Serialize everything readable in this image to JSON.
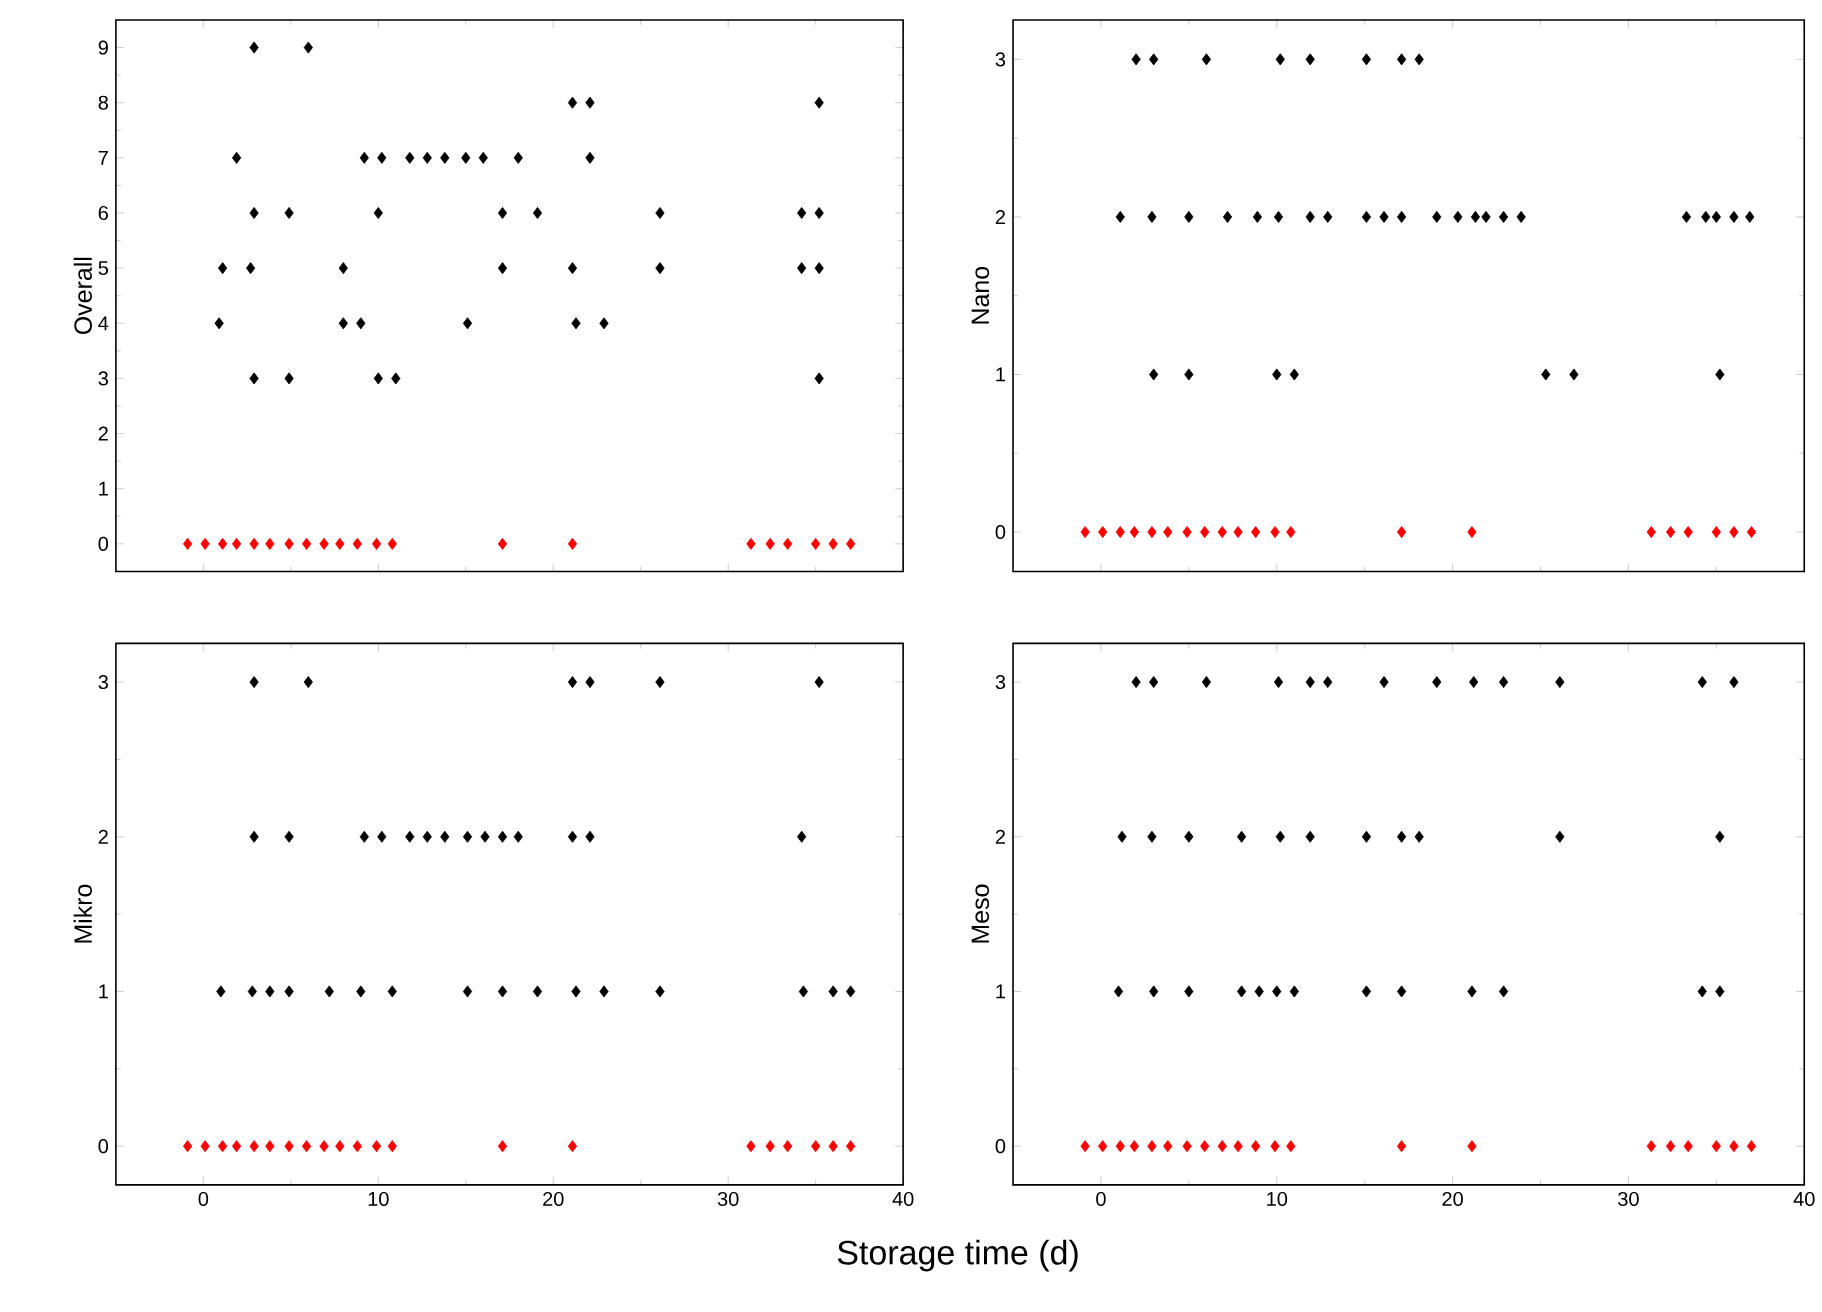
{
  "chart_data": [
    {
      "type": "scatter",
      "ylabel": "Overall",
      "xlim": [
        -5,
        40
      ],
      "ylim": [
        -0.5,
        9.5
      ],
      "xticks": [
        0,
        10,
        20,
        30,
        40
      ],
      "yticks": [
        0,
        1,
        2,
        3,
        4,
        5,
        6,
        7,
        8,
        9
      ],
      "tick_labels": "y",
      "marker": "diamond",
      "series": [
        {
          "color": "#000000",
          "x": [
            2.9,
            6.0,
            21.1,
            22.1,
            35.2,
            1.9,
            9.2,
            10.2,
            11.8,
            12.8,
            13.8,
            15.0,
            16.0,
            18.0,
            22.1,
            2.9,
            4.9,
            10.0,
            17.1,
            19.1,
            26.1,
            34.2,
            35.2,
            1.1,
            2.7,
            8.0,
            17.1,
            21.1,
            26.1,
            34.2,
            35.2,
            0.9,
            8.0,
            9.0,
            15.1,
            21.3,
            22.9,
            2.9,
            4.9,
            10.0,
            11.0,
            35.2
          ],
          "values": [
            9,
            9,
            8,
            8,
            8,
            7,
            7,
            7,
            7,
            7,
            7,
            7,
            7,
            7,
            7,
            6,
            6,
            6,
            6,
            6,
            6,
            6,
            6,
            5,
            5,
            5,
            5,
            5,
            5,
            5,
            5,
            4,
            4,
            4,
            4,
            4,
            4,
            3,
            3,
            3,
            3,
            3
          ]
        },
        {
          "color": "#ff0000",
          "x": [
            -0.9,
            0.1,
            1.1,
            1.9,
            2.9,
            3.8,
            4.9,
            5.9,
            6.9,
            7.8,
            8.8,
            9.9,
            10.8,
            17.1,
            21.1,
            31.3,
            32.4,
            33.4,
            35.0,
            36.0,
            37.0
          ],
          "values": [
            0,
            0,
            0,
            0,
            0,
            0,
            0,
            0,
            0,
            0,
            0,
            0,
            0,
            0,
            0,
            0,
            0,
            0,
            0,
            0,
            0
          ]
        }
      ]
    },
    {
      "type": "scatter",
      "ylabel": "Nano",
      "xlim": [
        -5,
        40
      ],
      "ylim": [
        -0.25,
        3.25
      ],
      "xticks": [
        0,
        10,
        20,
        30,
        40
      ],
      "yticks": [
        0,
        1,
        2,
        3
      ],
      "tick_labels": "y",
      "marker": "diamond",
      "series": [
        {
          "color": "#000000",
          "x": [
            2.0,
            3.0,
            6.0,
            10.2,
            11.9,
            15.1,
            17.1,
            18.1,
            1.1,
            2.9,
            5.0,
            7.2,
            8.9,
            10.1,
            11.9,
            12.9,
            15.1,
            16.1,
            17.1,
            19.1,
            20.3,
            21.3,
            21.9,
            22.9,
            23.9,
            33.3,
            34.4,
            35.0,
            36.0,
            36.9,
            3.0,
            5.0,
            10.0,
            11.0,
            25.3,
            26.9,
            35.2
          ],
          "values": [
            3,
            3,
            3,
            3,
            3,
            3,
            3,
            3,
            2,
            2,
            2,
            2,
            2,
            2,
            2,
            2,
            2,
            2,
            2,
            2,
            2,
            2,
            2,
            2,
            2,
            2,
            2,
            2,
            2,
            2,
            1,
            1,
            1,
            1,
            1,
            1,
            1
          ]
        },
        {
          "color": "#ff0000",
          "x": [
            -0.9,
            0.1,
            1.1,
            1.9,
            2.9,
            3.8,
            4.9,
            5.9,
            6.9,
            7.8,
            8.8,
            9.9,
            10.8,
            17.1,
            21.1,
            31.3,
            32.4,
            33.4,
            35.0,
            36.0,
            37.0
          ],
          "values": [
            0,
            0,
            0,
            0,
            0,
            0,
            0,
            0,
            0,
            0,
            0,
            0,
            0,
            0,
            0,
            0,
            0,
            0,
            0,
            0,
            0
          ]
        }
      ]
    },
    {
      "type": "scatter",
      "xlabel": "Storage time (d)",
      "ylabel": "Mikro",
      "xlim": [
        -5,
        40
      ],
      "ylim": [
        -0.25,
        3.25
      ],
      "xticks": [
        0,
        10,
        20,
        30,
        40
      ],
      "yticks": [
        0,
        1,
        2,
        3
      ],
      "marker": "diamond",
      "series": [
        {
          "color": "#000000",
          "x": [
            2.9,
            6.0,
            21.1,
            22.1,
            26.1,
            35.2,
            2.9,
            4.9,
            9.2,
            10.2,
            11.8,
            12.8,
            13.8,
            15.1,
            16.1,
            17.1,
            18.0,
            21.1,
            22.1,
            34.2,
            1.0,
            2.8,
            3.8,
            4.9,
            7.2,
            9.0,
            10.8,
            15.1,
            17.1,
            19.1,
            21.3,
            22.9,
            26.1,
            34.3,
            36.0,
            37.0
          ],
          "values": [
            3,
            3,
            3,
            3,
            3,
            3,
            2,
            2,
            2,
            2,
            2,
            2,
            2,
            2,
            2,
            2,
            2,
            2,
            2,
            2,
            1,
            1,
            1,
            1,
            1,
            1,
            1,
            1,
            1,
            1,
            1,
            1,
            1,
            1,
            1,
            1
          ]
        },
        {
          "color": "#ff0000",
          "x": [
            -0.9,
            0.1,
            1.1,
            1.9,
            2.9,
            3.8,
            4.9,
            5.9,
            6.9,
            7.8,
            8.8,
            9.9,
            10.8,
            17.1,
            21.1,
            31.3,
            32.4,
            33.4,
            35.0,
            36.0,
            37.0
          ],
          "values": [
            0,
            0,
            0,
            0,
            0,
            0,
            0,
            0,
            0,
            0,
            0,
            0,
            0,
            0,
            0,
            0,
            0,
            0,
            0,
            0,
            0
          ]
        }
      ]
    },
    {
      "type": "scatter",
      "ylabel": "Meso",
      "xlim": [
        -5,
        40
      ],
      "ylim": [
        -0.25,
        3.25
      ],
      "xticks": [
        0,
        10,
        20,
        30,
        40
      ],
      "yticks": [
        0,
        1,
        2,
        3
      ],
      "marker": "diamond",
      "series": [
        {
          "color": "#000000",
          "x": [
            2.0,
            3.0,
            6.0,
            10.1,
            11.9,
            12.9,
            16.1,
            19.1,
            21.2,
            22.9,
            26.1,
            34.2,
            36.0,
            1.2,
            2.9,
            5.0,
            8.0,
            10.2,
            11.9,
            15.1,
            17.1,
            18.1,
            26.1,
            35.2,
            1.0,
            3.0,
            5.0,
            8.0,
            9.0,
            10.0,
            11.0,
            15.1,
            17.1,
            21.1,
            22.9,
            34.2,
            35.2
          ],
          "values": [
            3,
            3,
            3,
            3,
            3,
            3,
            3,
            3,
            3,
            3,
            3,
            3,
            3,
            2,
            2,
            2,
            2,
            2,
            2,
            2,
            2,
            2,
            2,
            2,
            1,
            1,
            1,
            1,
            1,
            1,
            1,
            1,
            1,
            1,
            1,
            1,
            1
          ]
        },
        {
          "color": "#ff0000",
          "x": [
            -0.9,
            0.1,
            1.1,
            1.9,
            2.9,
            3.8,
            4.9,
            5.9,
            6.9,
            7.8,
            8.8,
            9.9,
            10.8,
            17.1,
            21.1,
            31.3,
            32.4,
            33.4,
            35.0,
            36.0,
            37.0
          ],
          "values": [
            0,
            0,
            0,
            0,
            0,
            0,
            0,
            0,
            0,
            0,
            0,
            0,
            0,
            0,
            0,
            0,
            0,
            0,
            0,
            0,
            0
          ]
        }
      ]
    }
  ]
}
